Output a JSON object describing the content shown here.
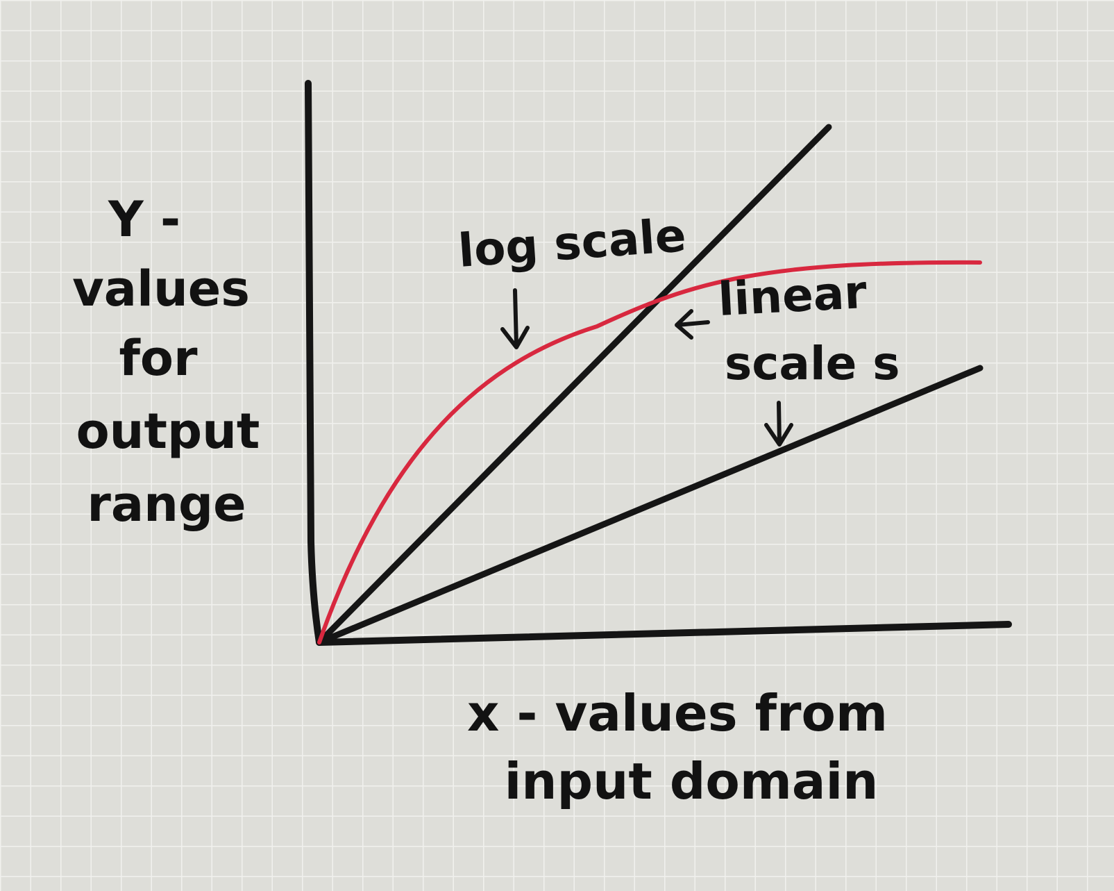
{
  "colors": {
    "paper": "#deded9",
    "grid": "#f1f1ee",
    "ink": "#151515",
    "log_curve": "#d8283f"
  },
  "labels": {
    "y_axis": [
      "Y -",
      "values",
      "for",
      "output",
      "range"
    ],
    "x_axis": [
      "x - values from",
      "input domain"
    ],
    "log_annotation": "log scale",
    "linear_annotation": [
      "linear",
      "scale s"
    ]
  }
}
